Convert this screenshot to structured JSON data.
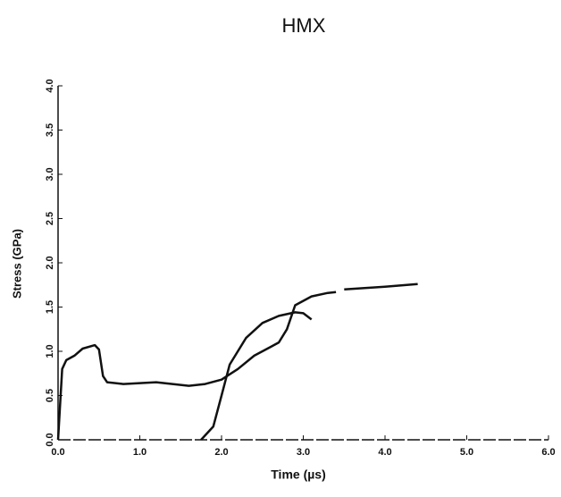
{
  "chart_data": {
    "type": "line",
    "title": "HMX",
    "x_label": "Time (µs)",
    "y_label": "Stress (GPa)",
    "xlim": [
      0,
      6
    ],
    "ylim": [
      0,
      4
    ],
    "xticks": [
      {
        "value": 0,
        "label": "0.0"
      },
      {
        "value": 1,
        "label": "1.0"
      },
      {
        "value": 2,
        "label": "2.0"
      },
      {
        "value": 3,
        "label": "3.0"
      },
      {
        "value": 4,
        "label": "4.0"
      },
      {
        "value": 5,
        "label": "5.0"
      },
      {
        "value": 6,
        "label": "6.0"
      }
    ],
    "yticks": [
      {
        "value": 0,
        "label": "0.0"
      },
      0.5,
      {
        "value": 1,
        "label": "1.0"
      },
      1.5,
      {
        "value": 2,
        "label": "2.0"
      },
      2.5,
      {
        "value": 3,
        "label": "3.0"
      },
      3.5,
      {
        "value": 4,
        "label": "4.0"
      }
    ],
    "series": [
      {
        "color": "#111111",
        "x": [
          0,
          0.05,
          0.1,
          0.2,
          0.3,
          0.45,
          0.5,
          0.55,
          0.6,
          0.8,
          1.0,
          1.2,
          1.4,
          1.6,
          1.8,
          2.0,
          2.2,
          2.4,
          2.6,
          2.7,
          2.8,
          2.9,
          3.1,
          3.3,
          3.4,
          3.45,
          3.5,
          4.0,
          4.4
        ],
        "values": [
          0,
          0.8,
          0.9,
          0.95,
          1.03,
          1.07,
          1.02,
          0.72,
          0.65,
          0.63,
          0.64,
          0.65,
          0.63,
          0.61,
          0.63,
          0.68,
          0.8,
          0.95,
          1.05,
          1.1,
          1.25,
          1.52,
          1.62,
          1.66,
          1.67,
          null,
          1.7,
          1.73,
          1.76
        ]
      },
      {
        "color": "#111111",
        "x": [
          1.75,
          1.9,
          2.0,
          2.1,
          2.3,
          2.5,
          2.7,
          2.9,
          3.0,
          3.1
        ],
        "values": [
          0,
          0.15,
          0.5,
          0.85,
          1.15,
          1.32,
          1.4,
          1.44,
          1.43,
          1.36
        ]
      }
    ]
  }
}
